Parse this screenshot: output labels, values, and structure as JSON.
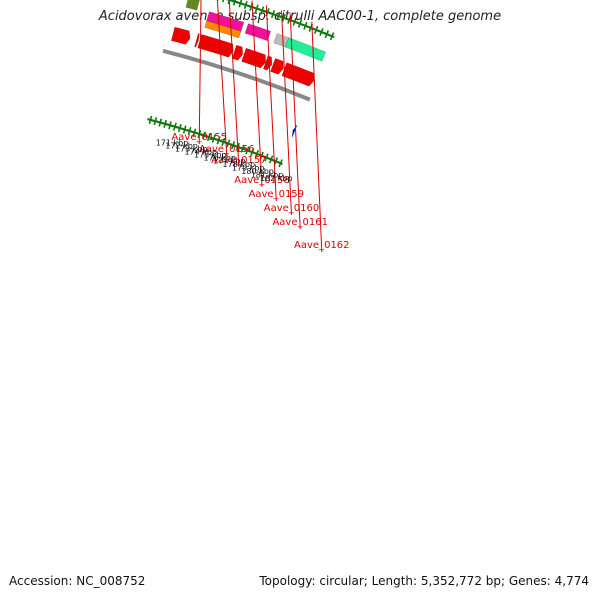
{
  "title": "Acidovorax avenae subsp. citrulli AAC00-1, complete genome",
  "footer": {
    "accession": "Accession: NC_008752",
    "summary": "Topology: circular; Length: 5,352,772 bp; Genes: 4,774"
  },
  "colors": {
    "cds_red": "#ee0000",
    "magenta": "#ee1199",
    "orange": "#ff8800",
    "olive": "#668822",
    "grey": "#bbbbbb",
    "spring_green": "#22ee99",
    "blue": "#0000dd",
    "backbone": "#888888",
    "tick_green": "#117711",
    "label_red": "#dd0000"
  },
  "gene_labels": [
    {
      "name": "Aave_0155",
      "kbp": 170.3
    },
    {
      "name": "Aave_0156",
      "kbp": 171.7
    },
    {
      "name": "Aave_0157",
      "kbp": 172.8
    },
    {
      "name": "Aave_0158",
      "kbp": 174.9
    },
    {
      "name": "Aave_0159",
      "kbp": 176.2
    },
    {
      "name": "Aave_0160",
      "kbp": 177.6
    },
    {
      "name": "Aave_0161",
      "kbp": 178.4
    },
    {
      "name": "Aave_0162",
      "kbp": 180.4
    }
  ],
  "scale_labels": [
    "171 kbp",
    "172 kbp",
    "173 kbp",
    "174 kbp",
    "175 kbp",
    "176 kbp",
    "177 kbp",
    "178 kbp",
    "179 kbp",
    "180 kbp",
    "181 kbp",
    "182 kbp"
  ],
  "features": [
    {
      "track": "outer",
      "start_kbp": 169.5,
      "end_kbp": 170.5,
      "color": "olive",
      "shape": "bar"
    },
    {
      "track": "top",
      "start_kbp": 171.6,
      "end_kbp": 174.8,
      "color": "magenta",
      "shape": "bar"
    },
    {
      "track": "mid",
      "start_kbp": 171.6,
      "end_kbp": 174.8,
      "color": "orange",
      "shape": "bar"
    },
    {
      "track": "top",
      "start_kbp": 175.2,
      "end_kbp": 177.3,
      "color": "magenta",
      "shape": "bar"
    },
    {
      "track": "top",
      "start_kbp": 177.9,
      "end_kbp": 179.0,
      "color": "grey",
      "shape": "bar"
    },
    {
      "track": "top",
      "start_kbp": 179.0,
      "end_kbp": 182.5,
      "color": "spring_green",
      "shape": "bar"
    },
    {
      "track": "cds",
      "start_kbp": 169.0,
      "end_kbp": 170.6,
      "color": "cds_red",
      "shape": "arrow"
    },
    {
      "track": "cds",
      "start_kbp": 171.2,
      "end_kbp": 171.4,
      "color": "cds_red",
      "shape": "arrow"
    },
    {
      "track": "cds",
      "start_kbp": 171.5,
      "end_kbp": 174.7,
      "color": "cds_red",
      "shape": "arrow"
    },
    {
      "track": "cds",
      "start_kbp": 174.8,
      "end_kbp": 175.6,
      "color": "cds_red",
      "shape": "arrow"
    },
    {
      "track": "cds",
      "start_kbp": 175.7,
      "end_kbp": 177.8,
      "color": "cds_red",
      "shape": "arrow"
    },
    {
      "track": "cds",
      "start_kbp": 177.8,
      "end_kbp": 178.4,
      "color": "cds_red",
      "shape": "arrow"
    },
    {
      "track": "cds",
      "start_kbp": 178.5,
      "end_kbp": 179.5,
      "color": "cds_red",
      "shape": "arrow"
    },
    {
      "track": "cds",
      "start_kbp": 179.6,
      "end_kbp": 182.5,
      "color": "cds_red",
      "shape": "arrow"
    },
    {
      "track": "inner",
      "start_kbp": 182.4,
      "end_kbp": 182.6,
      "color": "blue",
      "shape": "arrow-left"
    }
  ]
}
